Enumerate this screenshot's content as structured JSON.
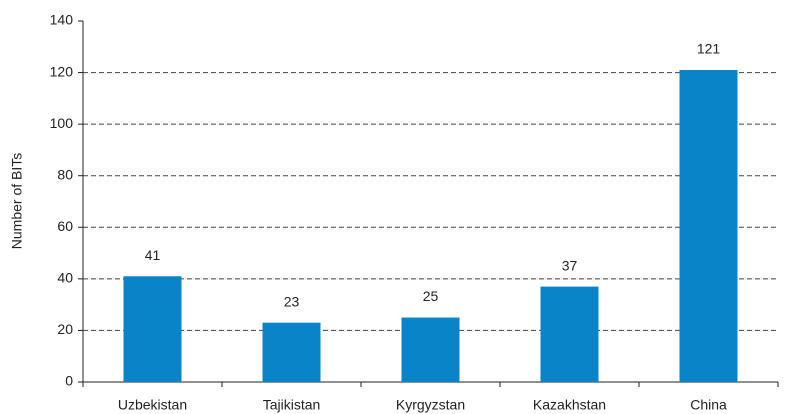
{
  "chart_data": {
    "type": "bar",
    "y_label": "Number of BITs",
    "categories": [
      "Uzbekistan",
      "Tajikistan",
      "Kyrgyzstan",
      "Kazakhstan",
      "China"
    ],
    "values": [
      41,
      23,
      25,
      37,
      121
    ],
    "color": "#0a84c8",
    "ylim": [
      0,
      140
    ],
    "yticks": [
      0,
      20,
      40,
      60,
      80,
      100,
      120,
      140
    ],
    "grid": true
  }
}
